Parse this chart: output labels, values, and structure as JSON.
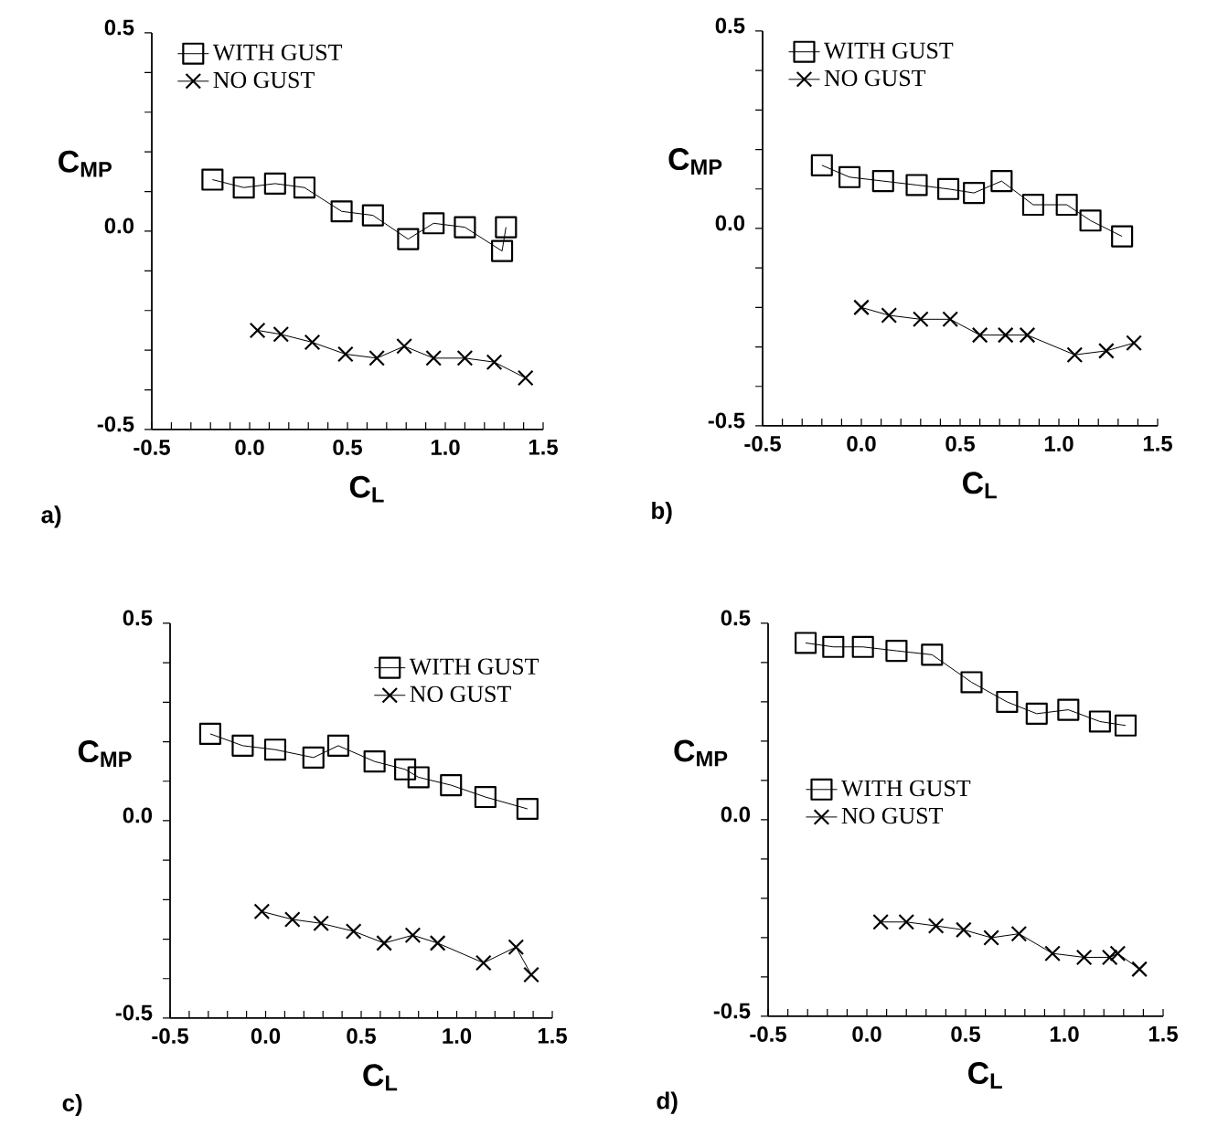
{
  "chart_data": [
    {
      "type": "line",
      "xlabel": "C$_{L}$",
      "ylabel": "C$_{MP}$",
      "legend": "top left",
      "annotations": [
        "a)"
      ],
      "xlim": [
        -0.5,
        1.5
      ],
      "ylim": [
        -0.5,
        0.5
      ],
      "xticks": [
        {
          "value": -0.5,
          "label": "-0.5"
        },
        {
          "value": -0.4,
          "label": null
        },
        {
          "value": -0.3,
          "label": null
        },
        {
          "value": -0.2,
          "label": null
        },
        {
          "value": -0.1,
          "label": null
        },
        {
          "value": 0,
          "label": "0.0"
        },
        {
          "value": 0.1,
          "label": null
        },
        {
          "value": 0.2,
          "label": null
        },
        {
          "value": 0.3,
          "label": null
        },
        {
          "value": 0.4,
          "label": null
        },
        {
          "value": 0.5,
          "label": "0.5"
        },
        {
          "value": 0.6,
          "label": null
        },
        {
          "value": 0.7,
          "label": null
        },
        {
          "value": 0.8,
          "label": null
        },
        {
          "value": 0.9,
          "label": null
        },
        {
          "value": 1,
          "label": "1.0"
        },
        {
          "value": 1.1,
          "label": null
        },
        {
          "value": 1.2,
          "label": null
        },
        {
          "value": 1.3,
          "label": null
        },
        {
          "value": 1.4,
          "label": null
        },
        {
          "value": 1.5,
          "label": "1.5"
        }
      ],
      "yticks": [
        {
          "value": -0.5,
          "label": "-0.5"
        },
        {
          "value": -0.4,
          "label": null
        },
        {
          "value": -0.3,
          "label": null
        },
        {
          "value": -0.2,
          "label": null
        },
        {
          "value": -0.1,
          "label": null
        },
        {
          "value": 0,
          "label": "0.0"
        },
        {
          "value": 0.1,
          "label": null
        },
        {
          "value": 0.2,
          "label": null
        },
        {
          "value": 0.3,
          "label": null
        },
        {
          "value": 0.4,
          "label": null
        },
        {
          "value": 0.5,
          "label": "0.5"
        }
      ],
      "series": [
        {
          "name": "WITH GUST",
          "color": "#000000",
          "marker": "square",
          "x": [
            -0.19,
            -0.03,
            0.13,
            0.28,
            0.47,
            0.63,
            0.81,
            0.94,
            1.1,
            1.29,
            1.31
          ],
          "values": [
            0.13,
            0.11,
            0.12,
            0.11,
            0.05,
            0.04,
            -0.02,
            0.02,
            0.01,
            -0.05,
            0.01
          ]
        },
        {
          "name": "NO GUST",
          "color": "#000000",
          "marker": "cross",
          "x": [
            0.04,
            0.16,
            0.32,
            0.49,
            0.65,
            0.79,
            0.94,
            1.1,
            1.25,
            1.41
          ],
          "values": [
            -0.25,
            -0.26,
            -0.28,
            -0.31,
            -0.32,
            -0.29,
            -0.32,
            -0.32,
            -0.33,
            -0.37
          ]
        }
      ]
    },
    {
      "type": "line",
      "xlabel": "C$_{L}$",
      "ylabel": "C$_{MP}$",
      "legend": "top left",
      "annotations": [
        "b)"
      ],
      "xlim": [
        -0.5,
        1.5
      ],
      "ylim": [
        -0.5,
        0.5
      ],
      "xticks": [
        {
          "value": -0.5,
          "label": "-0.5"
        },
        {
          "value": -0.4,
          "label": null
        },
        {
          "value": -0.3,
          "label": null
        },
        {
          "value": -0.2,
          "label": null
        },
        {
          "value": -0.1,
          "label": null
        },
        {
          "value": 0,
          "label": "0.0"
        },
        {
          "value": 0.1,
          "label": null
        },
        {
          "value": 0.2,
          "label": null
        },
        {
          "value": 0.3,
          "label": null
        },
        {
          "value": 0.4,
          "label": null
        },
        {
          "value": 0.5,
          "label": "0.5"
        },
        {
          "value": 0.6,
          "label": null
        },
        {
          "value": 0.7,
          "label": null
        },
        {
          "value": 0.8,
          "label": null
        },
        {
          "value": 0.9,
          "label": null
        },
        {
          "value": 1,
          "label": "1.0"
        },
        {
          "value": 1.1,
          "label": null
        },
        {
          "value": 1.2,
          "label": null
        },
        {
          "value": 1.3,
          "label": null
        },
        {
          "value": 1.4,
          "label": null
        },
        {
          "value": 1.5,
          "label": "1.5"
        }
      ],
      "yticks": [
        {
          "value": -0.5,
          "label": "-0.5"
        },
        {
          "value": -0.4,
          "label": null
        },
        {
          "value": -0.3,
          "label": null
        },
        {
          "value": -0.2,
          "label": null
        },
        {
          "value": -0.1,
          "label": null
        },
        {
          "value": 0,
          "label": "0.0"
        },
        {
          "value": 0.1,
          "label": null
        },
        {
          "value": 0.2,
          "label": null
        },
        {
          "value": 0.3,
          "label": null
        },
        {
          "value": 0.4,
          "label": null
        },
        {
          "value": 0.5,
          "label": "0.5"
        }
      ],
      "series": [
        {
          "name": "WITH GUST",
          "color": "#000000",
          "marker": "square",
          "x": [
            -0.2,
            -0.06,
            0.11,
            0.28,
            0.44,
            0.57,
            0.71,
            0.87,
            1.04,
            1.16,
            1.32
          ],
          "values": [
            0.16,
            0.13,
            0.12,
            0.11,
            0.1,
            0.09,
            0.12,
            0.06,
            0.06,
            0.02,
            -0.02
          ]
        },
        {
          "name": "NO GUST",
          "color": "#000000",
          "marker": "cross",
          "x": [
            0.0,
            0.14,
            0.3,
            0.45,
            0.6,
            0.73,
            0.84,
            1.08,
            1.24,
            1.38
          ],
          "values": [
            -0.2,
            -0.22,
            -0.23,
            -0.23,
            -0.27,
            -0.27,
            -0.27,
            -0.32,
            -0.31,
            -0.29
          ]
        }
      ]
    },
    {
      "type": "line",
      "xlabel": "C$_{L}$",
      "ylabel": "C$_{MP}$",
      "legend": "top right",
      "annotations": [
        "c)"
      ],
      "xlim": [
        -0.5,
        1.5
      ],
      "ylim": [
        -0.5,
        0.5
      ],
      "xticks": [
        {
          "value": -0.5,
          "label": "-0.5"
        },
        {
          "value": -0.4,
          "label": null
        },
        {
          "value": -0.3,
          "label": null
        },
        {
          "value": -0.2,
          "label": null
        },
        {
          "value": -0.1,
          "label": null
        },
        {
          "value": 0,
          "label": "0.0"
        },
        {
          "value": 0.1,
          "label": null
        },
        {
          "value": 0.2,
          "label": null
        },
        {
          "value": 0.3,
          "label": null
        },
        {
          "value": 0.4,
          "label": null
        },
        {
          "value": 0.5,
          "label": "0.5"
        },
        {
          "value": 0.6,
          "label": null
        },
        {
          "value": 0.7,
          "label": null
        },
        {
          "value": 0.8,
          "label": null
        },
        {
          "value": 0.9,
          "label": null
        },
        {
          "value": 1,
          "label": "1.0"
        },
        {
          "value": 1.1,
          "label": null
        },
        {
          "value": 1.2,
          "label": null
        },
        {
          "value": 1.3,
          "label": null
        },
        {
          "value": 1.4,
          "label": null
        },
        {
          "value": 1.5,
          "label": "1.5"
        }
      ],
      "yticks": [
        {
          "value": -0.5,
          "label": "-0.5"
        },
        {
          "value": -0.4,
          "label": null
        },
        {
          "value": -0.3,
          "label": null
        },
        {
          "value": -0.2,
          "label": null
        },
        {
          "value": -0.1,
          "label": null
        },
        {
          "value": 0,
          "label": "0.0"
        },
        {
          "value": 0.1,
          "label": null
        },
        {
          "value": 0.2,
          "label": null
        },
        {
          "value": 0.3,
          "label": null
        },
        {
          "value": 0.4,
          "label": null
        },
        {
          "value": 0.5,
          "label": "0.5"
        }
      ],
      "series": [
        {
          "name": "WITH GUST",
          "color": "#000000",
          "marker": "square",
          "x": [
            -0.29,
            -0.12,
            0.05,
            0.25,
            0.38,
            0.57,
            0.73,
            0.8,
            0.97,
            1.15,
            1.37
          ],
          "values": [
            0.22,
            0.19,
            0.18,
            0.16,
            0.19,
            0.15,
            0.13,
            0.11,
            0.09,
            0.06,
            0.03
          ]
        },
        {
          "name": "NO GUST",
          "color": "#000000",
          "marker": "cross",
          "x": [
            -0.02,
            0.14,
            0.29,
            0.46,
            0.62,
            0.77,
            0.9,
            1.14,
            1.31,
            1.39
          ],
          "values": [
            -0.23,
            -0.25,
            -0.26,
            -0.28,
            -0.31,
            -0.29,
            -0.31,
            -0.36,
            -0.32,
            -0.39
          ]
        }
      ]
    },
    {
      "type": "line",
      "xlabel": "C$_{L}$",
      "ylabel": "C$_{MP}$",
      "legend": "center",
      "annotations": [
        "d)"
      ],
      "xlim": [
        -0.5,
        1.5
      ],
      "ylim": [
        -0.5,
        0.5
      ],
      "xticks": [
        {
          "value": -0.5,
          "label": "-0.5"
        },
        {
          "value": -0.4,
          "label": null
        },
        {
          "value": -0.3,
          "label": null
        },
        {
          "value": -0.2,
          "label": null
        },
        {
          "value": -0.1,
          "label": null
        },
        {
          "value": 0,
          "label": "0.0"
        },
        {
          "value": 0.1,
          "label": null
        },
        {
          "value": 0.2,
          "label": null
        },
        {
          "value": 0.3,
          "label": null
        },
        {
          "value": 0.4,
          "label": null
        },
        {
          "value": 0.5,
          "label": "0.5"
        },
        {
          "value": 0.6,
          "label": null
        },
        {
          "value": 0.7,
          "label": null
        },
        {
          "value": 0.8,
          "label": null
        },
        {
          "value": 0.9,
          "label": null
        },
        {
          "value": 1,
          "label": "1.0"
        },
        {
          "value": 1.1,
          "label": null
        },
        {
          "value": 1.2,
          "label": null
        },
        {
          "value": 1.3,
          "label": null
        },
        {
          "value": 1.4,
          "label": null
        },
        {
          "value": 1.5,
          "label": "1.5"
        }
      ],
      "yticks": [
        {
          "value": -0.5,
          "label": "-0.5"
        },
        {
          "value": -0.4,
          "label": null
        },
        {
          "value": -0.3,
          "label": null
        },
        {
          "value": -0.2,
          "label": null
        },
        {
          "value": -0.1,
          "label": null
        },
        {
          "value": 0,
          "label": "0.0"
        },
        {
          "value": 0.1,
          "label": null
        },
        {
          "value": 0.2,
          "label": null
        },
        {
          "value": 0.3,
          "label": null
        },
        {
          "value": 0.4,
          "label": null
        },
        {
          "value": 0.5,
          "label": "0.5"
        }
      ],
      "series": [
        {
          "name": "WITH GUST",
          "color": "#000000",
          "marker": "square",
          "x": [
            -0.31,
            -0.17,
            -0.02,
            0.15,
            0.33,
            0.53,
            0.71,
            0.86,
            1.02,
            1.18,
            1.31
          ],
          "values": [
            0.45,
            0.44,
            0.44,
            0.43,
            0.42,
            0.35,
            0.3,
            0.27,
            0.28,
            0.25,
            0.24
          ]
        },
        {
          "name": "NO GUST",
          "color": "#000000",
          "marker": "cross",
          "x": [
            0.07,
            0.2,
            0.35,
            0.49,
            0.63,
            0.77,
            0.94,
            1.1,
            1.23,
            1.27,
            1.38
          ],
          "values": [
            -0.26,
            -0.26,
            -0.27,
            -0.28,
            -0.3,
            -0.29,
            -0.34,
            -0.35,
            -0.35,
            -0.34,
            -0.38
          ]
        }
      ]
    }
  ]
}
